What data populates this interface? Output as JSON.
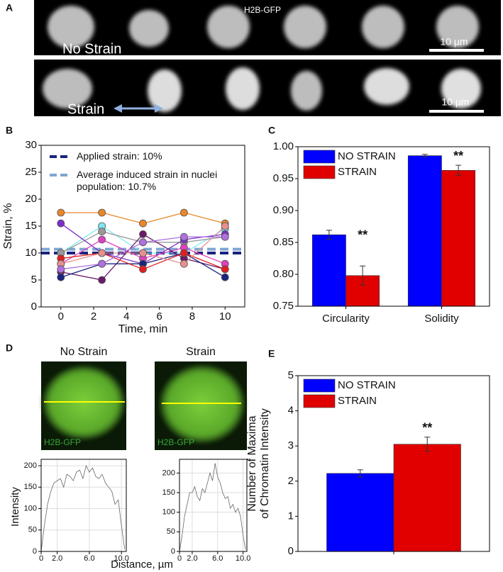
{
  "panel_a": {
    "label": "A",
    "stain": "H2B-GFP",
    "rows": [
      {
        "label": "No Strain",
        "scale": "10 µm"
      },
      {
        "label": "Strain",
        "scale": "10 µm"
      }
    ]
  },
  "panel_d": {
    "label": "D",
    "ylabel": "Intensity",
    "xlabel": "Distance, µm",
    "images": [
      {
        "title": "No Strain",
        "stain": "H2B-GFP"
      },
      {
        "title": "Strain",
        "stain": "H2B-GFP"
      }
    ]
  },
  "chart_data": [
    {
      "panel": "B",
      "type": "line",
      "xlabel": "Time, min",
      "ylabel": "Strain, %",
      "x": [
        0,
        2.5,
        5,
        7.5,
        10
      ],
      "xlim": [
        -1.2,
        11.2
      ],
      "xticks": [
        0,
        2,
        4,
        6,
        8,
        10
      ],
      "ylim": [
        0,
        30
      ],
      "yticks": [
        0,
        5,
        10,
        15,
        20,
        25,
        30
      ],
      "markers": true,
      "reference_lines": [
        {
          "name": "Applied strain: 10%",
          "value": 10,
          "color": "#1a237e"
        },
        {
          "name": "Average induced strain in nuclei population: 10.7%",
          "value": 10.7,
          "color": "#7ea6d3"
        }
      ],
      "series": [
        {
          "color": "#e8862a",
          "values": [
            17.5,
            17.5,
            15.5,
            17.5,
            15.5
          ]
        },
        {
          "color": "#7fe8ef",
          "values": [
            10,
            15,
            10,
            10,
            14.5
          ]
        },
        {
          "color": "#9a9a9a",
          "values": [
            10,
            14,
            12,
            12,
            13
          ]
        },
        {
          "color": "#7b2fc9",
          "values": [
            15.5,
            10,
            8,
            12.5,
            13.5
          ]
        },
        {
          "color": "#e040c0",
          "values": [
            8,
            12.5,
            9,
            11,
            8
          ]
        },
        {
          "color": "#6a1b6a",
          "values": [
            6.5,
            5,
            13.5,
            9,
            7
          ]
        },
        {
          "color": "#1a237e",
          "values": [
            5.5,
            8,
            8,
            10,
            5.5
          ]
        },
        {
          "color": "#e02020",
          "values": [
            9,
            10,
            7,
            10,
            7
          ]
        },
        {
          "color": "#e89090",
          "values": [
            8,
            10,
            10,
            8,
            15
          ]
        },
        {
          "color": "#b070e0",
          "values": [
            7,
            8,
            12,
            13,
            13
          ]
        }
      ]
    },
    {
      "panel": "C",
      "type": "bar",
      "categories": [
        "Circularity",
        "Solidity"
      ],
      "ylim": [
        0.75,
        1.0
      ],
      "yticks": [
        0.75,
        {
          "value": 0.8,
          "label": "0.80"
        },
        0.85,
        {
          "value": 0.9,
          "label": "0.90"
        },
        0.95,
        {
          "value": 1.0,
          "label": "1.00"
        }
      ],
      "series": [
        {
          "name": "NO STRAIN",
          "color": "#0000ff",
          "values": [
            0.862,
            0.986
          ],
          "errors": [
            0.007,
            0.002
          ]
        },
        {
          "name": "STRAIN",
          "color": "#e00000",
          "values": [
            0.798,
            0.963
          ],
          "errors": [
            0.015,
            0.008
          ]
        }
      ],
      "annotations": [
        "**",
        "**"
      ]
    },
    {
      "type": "line",
      "x": [
        0,
        0.4,
        0.8,
        1.2,
        1.6,
        2.0,
        2.4,
        2.8,
        3.2,
        3.6,
        4.0,
        4.4,
        4.8,
        5.2,
        5.6,
        6.0,
        6.4,
        6.8,
        7.2,
        7.6,
        8.0,
        8.4,
        8.8,
        9.2,
        9.6,
        10.0,
        10.4
      ],
      "xlim": [
        0,
        10.6
      ],
      "xticks": [
        0,
        {
          "value": 2,
          "label": "2.0"
        },
        {
          "value": 6,
          "label": "6.0"
        },
        {
          "value": 10,
          "label": "10.0"
        }
      ],
      "ylim": [
        0,
        215
      ],
      "yticks": [
        0,
        50,
        100,
        150,
        200
      ],
      "grid": true,
      "series": [
        {
          "color": "#666666",
          "values": [
            0,
            60,
            110,
            140,
            160,
            165,
            170,
            150,
            180,
            175,
            165,
            185,
            190,
            170,
            200,
            185,
            195,
            175,
            170,
            180,
            160,
            150,
            140,
            110,
            120,
            60,
            5
          ]
        }
      ]
    },
    {
      "type": "line",
      "x": [
        0,
        0.4,
        0.8,
        1.2,
        1.6,
        2.0,
        2.4,
        2.8,
        3.2,
        3.6,
        4.0,
        4.4,
        4.8,
        5.2,
        5.6,
        6.0,
        6.4,
        6.8,
        7.2,
        7.6,
        8.0,
        8.4,
        8.8,
        9.2,
        9.6,
        10.0,
        10.4
      ],
      "xlim": [
        0,
        10.6
      ],
      "xticks": [
        0,
        {
          "value": 2,
          "label": "2.0"
        },
        {
          "value": 6,
          "label": "6.0"
        },
        {
          "value": 10,
          "label": "10.0"
        }
      ],
      "ylim": [
        0,
        235
      ],
      "yticks": [
        0,
        50,
        100,
        150,
        200
      ],
      "grid": true,
      "series": [
        {
          "color": "#666666",
          "values": [
            0,
            40,
            90,
            120,
            150,
            150,
            165,
            140,
            130,
            160,
            150,
            175,
            200,
            180,
            225,
            190,
            175,
            150,
            135,
            140,
            110,
            120,
            100,
            110,
            90,
            40,
            5
          ]
        }
      ]
    },
    {
      "panel": "E",
      "type": "bar",
      "categories": [
        null
      ],
      "ylabel": [
        "Number of Maxima",
        "of Chromatin Intensity"
      ],
      "ylim": [
        0,
        5
      ],
      "yticks": [
        0,
        1,
        2,
        3,
        4,
        5
      ],
      "series": [
        {
          "name": "NO STRAIN",
          "color": "#0000ff",
          "values": [
            2.22
          ],
          "errors": [
            0.1
          ]
        },
        {
          "name": "STRAIN",
          "color": "#e00000",
          "values": [
            3.05
          ],
          "errors": [
            0.2
          ]
        }
      ],
      "annotations": [
        "**"
      ]
    }
  ]
}
